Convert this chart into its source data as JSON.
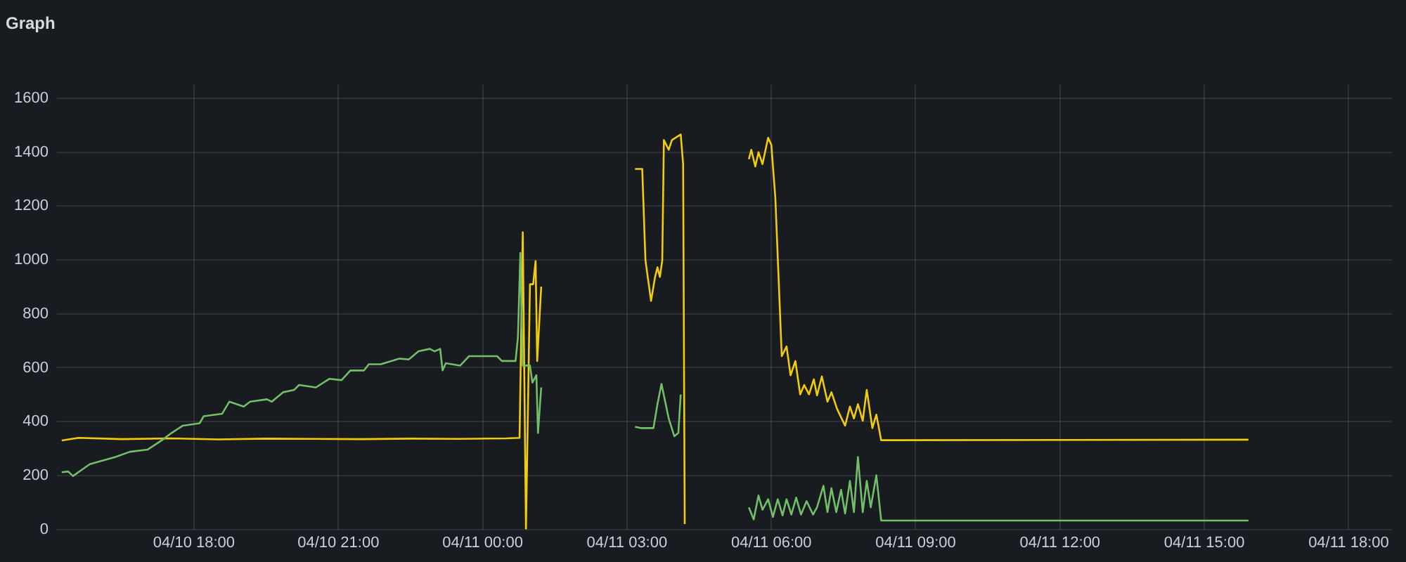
{
  "chart_data": {
    "type": "line",
    "title": "Graph",
    "grid": true,
    "marker": "none",
    "xlim": [
      "--04-10T15:09",
      "--04-11T18:54"
    ],
    "xticks": [
      {
        "value": "--04-10T18:00",
        "label": "04/10 18:00"
      },
      {
        "value": "--04-10T21:00",
        "label": "04/10 21:00"
      },
      {
        "value": "--04-11T00:00",
        "label": "04/11 00:00"
      },
      {
        "value": "--04-11T03:00",
        "label": "04/11 03:00"
      },
      {
        "value": "--04-11T06:00",
        "label": "04/11 06:00"
      },
      {
        "value": "--04-11T09:00",
        "label": "04/11 09:00"
      },
      {
        "value": "--04-11T12:00",
        "label": "04/11 12:00"
      },
      {
        "value": "--04-11T15:00",
        "label": "04/11 15:00"
      },
      {
        "value": "--04-11T18:00",
        "label": "04/11 18:00"
      }
    ],
    "ylim": [
      0,
      1650
    ],
    "yticks": [
      0,
      200,
      400,
      600,
      800,
      1000,
      1200,
      1400,
      1600
    ],
    "series": [
      {
        "color": "#73bf69",
        "x": [
          "--04-10T15:15",
          "--04-10T15:23",
          "--04-10T15:29",
          "--04-10T15:50",
          "--04-10T16:22",
          "--04-10T16:40",
          "--04-10T17:02",
          "--04-10T17:20",
          "--04-10T17:32",
          "--04-10T17:46",
          "--04-10T18:07",
          "--04-10T18:12",
          "--04-10T18:35",
          "--04-10T18:44",
          "--04-10T19:02",
          "--04-10T19:10",
          "--04-10T19:31",
          "--04-10T19:37",
          "--04-10T19:51",
          "--04-10T20:05",
          "--04-10T20:11",
          "--04-10T20:32",
          "--04-10T20:49",
          "--04-10T21:04",
          "--04-10T21:15",
          "--04-10T21:32",
          "--04-10T21:38",
          "--04-10T21:53",
          "--04-10T22:16",
          "--04-10T22:28",
          "--04-10T22:40",
          "--04-10T22:54",
          "--04-10T23:00",
          "--04-10T23:07",
          "--04-10T23:10",
          "--04-10T23:14",
          "--04-10T23:32",
          "--04-10T23:43",
          "--04-11T00:18",
          "--04-11T00:24",
          "--04-11T00:41",
          "--04-11T00:44",
          "--04-11T00:47",
          "--04-11T00:50",
          "--04-11T00:59",
          "--04-11T01:02",
          "--04-11T01:07",
          "--04-11T01:09",
          "--04-11T01:13",
          "--04-11T02:00",
          "--04-11T03:10",
          "--04-11T03:18",
          "--04-11T03:33",
          "--04-11T03:38",
          "--04-11T03:43",
          "--04-11T03:47",
          "--04-11T03:52",
          "--04-11T03:59",
          "--04-11T04:04",
          "--04-11T04:07",
          "--04-11T04:48",
          "--04-11T05:32",
          "--04-11T05:38",
          "--04-11T05:44",
          "--04-11T05:49",
          "--04-11T05:56",
          "--04-11T06:02",
          "--04-11T06:08",
          "--04-11T06:14",
          "--04-11T06:19",
          "--04-11T06:25",
          "--04-11T06:31",
          "--04-11T06:37",
          "--04-11T06:44",
          "--04-11T06:52",
          "--04-11T06:57",
          "--04-11T07:05",
          "--04-11T07:10",
          "--04-11T07:15",
          "--04-11T07:21",
          "--04-11T07:27",
          "--04-11T07:32",
          "--04-11T07:38",
          "--04-11T07:43",
          "--04-11T07:48",
          "--04-11T07:54",
          "--04-11T07:59",
          "--04-11T08:04",
          "--04-11T08:11",
          "--04-11T08:17",
          "--04-11T15:55"
        ],
        "values": [
          212,
          215,
          198,
          242,
          269,
          288,
          296,
          331,
          358,
          385,
          394,
          420,
          429,
          474,
          456,
          474,
          483,
          474,
          509,
          518,
          536,
          527,
          559,
          554,
          590,
          590,
          613,
          613,
          634,
          631,
          661,
          670,
          661,
          670,
          590,
          617,
          608,
          643,
          643,
          625,
          625,
          714,
          1026,
          608,
          608,
          545,
          572,
          358,
          527,
          null,
          381,
          376,
          376,
          465,
          540,
          483,
          412,
          346,
          358,
          501,
          null,
          82,
          37,
          126,
          73,
          112,
          46,
          112,
          52,
          112,
          55,
          118,
          55,
          105,
          55,
          82,
          162,
          64,
          153,
          64,
          147,
          59,
          180,
          64,
          269,
          64,
          180,
          82,
          201,
          33,
          33
        ]
      },
      {
        "color": "#f2cc0c",
        "x": [
          "--04-10T15:15",
          "--04-10T15:36",
          "--04-10T16:30",
          "--04-10T17:30",
          "--04-10T18:30",
          "--04-10T19:30",
          "--04-10T20:30",
          "--04-10T21:30",
          "--04-10T22:30",
          "--04-10T23:30",
          "--04-11T00:30",
          "--04-11T00:46",
          "--04-11T00:50",
          "--04-11T00:54",
          "--04-11T00:59",
          "--04-11T01:03",
          "--04-11T01:06",
          "--04-11T01:08",
          "--04-11T01:13",
          "--04-11T02:00",
          "--04-11T03:10",
          "--04-11T03:19",
          "--04-11T03:23",
          "--04-11T03:30",
          "--04-11T03:35",
          "--04-11T03:38",
          "--04-11T03:41",
          "--04-11T03:44",
          "--04-11T03:46",
          "--04-11T03:52",
          "--04-11T03:56",
          "--04-11T04:07",
          "--04-11T04:10",
          "--04-11T04:12",
          "--04-11T04:48",
          "--04-11T05:32",
          "--04-11T05:35",
          "--04-11T05:40",
          "--04-11T05:44",
          "--04-11T05:49",
          "--04-11T05:56",
          "--04-11T06:00",
          "--04-11T06:05",
          "--04-11T06:13",
          "--04-11T06:19",
          "--04-11T06:24",
          "--04-11T06:30",
          "--04-11T06:36",
          "--04-11T06:41",
          "--04-11T06:47",
          "--04-11T06:53",
          "--04-11T06:57",
          "--04-11T07:03",
          "--04-11T07:10",
          "--04-11T07:15",
          "--04-11T07:22",
          "--04-11T07:32",
          "--04-11T07:38",
          "--04-11T07:43",
          "--04-11T07:48",
          "--04-11T07:54",
          "--04-11T07:59",
          "--04-11T08:06",
          "--04-11T08:11",
          "--04-11T08:17",
          "--04-11T15:55"
        ],
        "values": [
          330,
          340,
          335,
          338,
          334,
          337,
          336,
          335,
          337,
          336,
          338,
          340,
          1103,
          0,
          910,
          910,
          996,
          625,
          901,
          null,
          1338,
          1338,
          999,
          848,
          937,
          973,
          937,
          999,
          1445,
          1409,
          1445,
          1466,
          1356,
          20,
          null,
          1374,
          1409,
          1347,
          1400,
          1356,
          1454,
          1427,
          1231,
          643,
          679,
          572,
          625,
          501,
          536,
          501,
          557,
          497,
          568,
          474,
          509,
          447,
          385,
          456,
          412,
          465,
          403,
          518,
          376,
          426,
          331,
          333
        ]
      }
    ]
  }
}
